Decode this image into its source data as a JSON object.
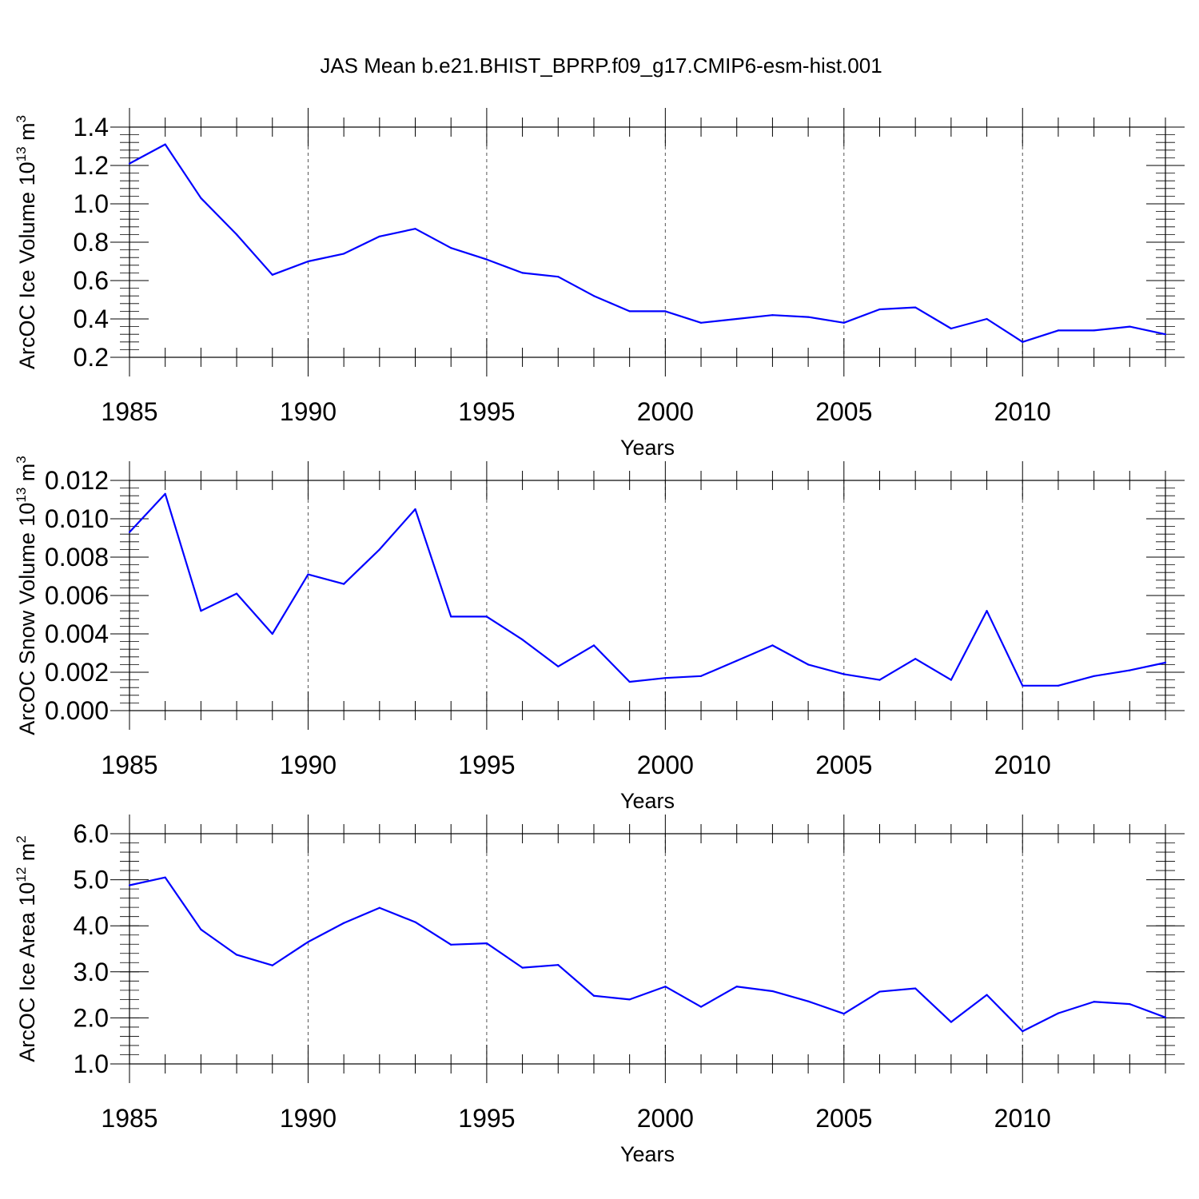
{
  "title": "JAS Mean b.e21.BHIST_BPRP.f09_g17.CMIP6-esm-hist.001",
  "colors": {
    "line": "#0000ff",
    "axis": "#000000",
    "grid": "#555555"
  },
  "chart_data": [
    {
      "type": "line",
      "xlabel": "Years",
      "ylabel": "ArcOC Ice Volume 10",
      "ylabel_sup": "13",
      "ylabel_unit": " m",
      "ylabel_unit_sup": "3",
      "xlim": [
        1985,
        2014
      ],
      "ylim": [
        0.2,
        1.4
      ],
      "x_ticks": [
        "1985",
        "1990",
        "1995",
        "2000",
        "2005",
        "2010"
      ],
      "y_ticks": [
        "0.2",
        "0.4",
        "0.6",
        "0.8",
        "1.0",
        "1.2",
        "1.4"
      ],
      "y_tick_values": [
        0.2,
        0.4,
        0.6,
        0.8,
        1.0,
        1.2,
        1.4
      ],
      "y_minor_step": 0.04,
      "grid": "vertical dashed at major x ticks",
      "series": [
        {
          "x": [
            1985,
            1986,
            1987,
            1988,
            1989,
            1990,
            1991,
            1992,
            1993,
            1994,
            1995,
            1996,
            1997,
            1998,
            1999,
            2000,
            2001,
            2002,
            2003,
            2004,
            2005,
            2006,
            2007,
            2008,
            2009,
            2010,
            2011,
            2012,
            2013,
            2014
          ],
          "values": [
            1.21,
            1.31,
            1.03,
            0.84,
            0.63,
            0.7,
            0.74,
            0.83,
            0.87,
            0.77,
            0.71,
            0.64,
            0.62,
            0.52,
            0.44,
            0.44,
            0.38,
            0.4,
            0.42,
            0.41,
            0.38,
            0.45,
            0.46,
            0.35,
            0.4,
            0.28,
            0.34,
            0.34,
            0.36,
            0.32
          ]
        }
      ]
    },
    {
      "type": "line",
      "xlabel": "Years",
      "ylabel": "ArcOC Snow Volume 10",
      "ylabel_sup": "13",
      "ylabel_unit": " m",
      "ylabel_unit_sup": "3",
      "xlim": [
        1985,
        2014
      ],
      "ylim": [
        0.0,
        0.012
      ],
      "x_ticks": [
        "1985",
        "1990",
        "1995",
        "2000",
        "2005",
        "2010"
      ],
      "y_ticks": [
        "0.000",
        "0.002",
        "0.004",
        "0.006",
        "0.008",
        "0.010",
        "0.012"
      ],
      "y_tick_values": [
        0.0,
        0.002,
        0.004,
        0.006,
        0.008,
        0.01,
        0.012
      ],
      "y_minor_step": 0.0004,
      "grid": "vertical dashed at major x ticks",
      "series": [
        {
          "x": [
            1985,
            1986,
            1987,
            1988,
            1989,
            1990,
            1991,
            1992,
            1993,
            1994,
            1995,
            1996,
            1997,
            1998,
            1999,
            2000,
            2001,
            2002,
            2003,
            2004,
            2005,
            2006,
            2007,
            2008,
            2009,
            2010,
            2011,
            2012,
            2013,
            2014
          ],
          "values": [
            0.0093,
            0.0113,
            0.0052,
            0.0061,
            0.004,
            0.0071,
            0.0066,
            0.0084,
            0.0105,
            0.0049,
            0.0049,
            0.0037,
            0.0023,
            0.0034,
            0.0015,
            0.0017,
            0.0018,
            0.0026,
            0.0034,
            0.0024,
            0.0019,
            0.0016,
            0.0027,
            0.0016,
            0.0052,
            0.0013,
            0.0013,
            0.0018,
            0.0021,
            0.0025
          ]
        }
      ]
    },
    {
      "type": "line",
      "xlabel": "Years",
      "ylabel": "ArcOC Ice Area 10",
      "ylabel_sup": "12",
      "ylabel_unit": " m",
      "ylabel_unit_sup": "2",
      "xlim": [
        1985,
        2014
      ],
      "ylim": [
        1.0,
        6.0
      ],
      "x_ticks": [
        "1985",
        "1990",
        "1995",
        "2000",
        "2005",
        "2010"
      ],
      "y_ticks": [
        "1.0",
        "2.0",
        "3.0",
        "4.0",
        "5.0",
        "6.0"
      ],
      "y_tick_values": [
        1.0,
        2.0,
        3.0,
        4.0,
        5.0,
        6.0
      ],
      "y_minor_step": 0.2,
      "grid": "vertical dashed at major x ticks",
      "series": [
        {
          "x": [
            1985,
            1986,
            1987,
            1988,
            1989,
            1990,
            1991,
            1992,
            1993,
            1994,
            1995,
            1996,
            1997,
            1998,
            1999,
            2000,
            2001,
            2002,
            2003,
            2004,
            2005,
            2006,
            2007,
            2008,
            2009,
            2010,
            2011,
            2012,
            2013,
            2014
          ],
          "values": [
            4.88,
            5.05,
            3.92,
            3.37,
            3.14,
            3.65,
            4.06,
            4.39,
            4.08,
            3.59,
            3.62,
            3.09,
            3.15,
            2.48,
            2.4,
            2.68,
            2.24,
            2.68,
            2.58,
            2.36,
            2.09,
            2.57,
            2.64,
            1.91,
            2.5,
            1.71,
            2.1,
            2.35,
            2.3,
            2.01
          ]
        }
      ]
    }
  ]
}
